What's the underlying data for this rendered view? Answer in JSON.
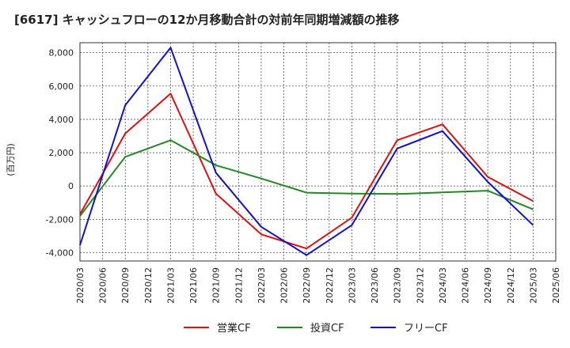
{
  "chart_data": {
    "type": "line",
    "title": "[6617]  キャッシュフローの12か月移動合計の対前年同期増減額の推移",
    "ylabel": "(百万円)",
    "xlabel": "",
    "ylim": [
      -4500,
      8600
    ],
    "yticks": [
      -4000,
      -2000,
      0,
      2000,
      4000,
      6000,
      8000
    ],
    "ytick_labels": [
      "-4,000",
      "-2,000",
      "0",
      "2,000",
      "4,000",
      "6,000",
      "8,000"
    ],
    "x_range": [
      "2020/03",
      "2025/06"
    ],
    "xtick_labels": [
      "2020/03",
      "2020/06",
      "2020/09",
      "2020/12",
      "2021/03",
      "2021/06",
      "2021/09",
      "2021/12",
      "2022/03",
      "2022/06",
      "2022/09",
      "2022/12",
      "2023/03",
      "2023/06",
      "2023/09",
      "2023/12",
      "2024/03",
      "2024/06",
      "2024/09",
      "2024/12",
      "2025/03",
      "2025/06"
    ],
    "grid": true,
    "legend_position": "bottom",
    "series": [
      {
        "name": "営業CF",
        "color": "#dd1111",
        "x": [
          "2020/03",
          "2020/09",
          "2021/03",
          "2021/09",
          "2022/03",
          "2022/09",
          "2023/03",
          "2023/09",
          "2024/03",
          "2024/09",
          "2025/03"
        ],
        "values": [
          -1700,
          3150,
          5550,
          -450,
          -2900,
          -3750,
          -1900,
          2750,
          3700,
          550,
          -900
        ]
      },
      {
        "name": "投資CF",
        "color": "#228822",
        "x": [
          "2020/03",
          "2020/09",
          "2021/03",
          "2021/09",
          "2022/03",
          "2022/09",
          "2023/03",
          "2023/09",
          "2024/03",
          "2024/09",
          "2025/03"
        ],
        "values": [
          -1800,
          1750,
          2750,
          1250,
          450,
          -400,
          -450,
          -480,
          -380,
          -280,
          -1400
        ]
      },
      {
        "name": "フリーCF",
        "color": "#1111cc",
        "x": [
          "2020/03",
          "2020/09",
          "2021/03",
          "2021/09",
          "2022/03",
          "2022/09",
          "2023/03",
          "2023/09",
          "2024/03",
          "2024/09",
          "2025/03"
        ],
        "values": [
          -3550,
          4850,
          8300,
          800,
          -2450,
          -4150,
          -2350,
          2250,
          3300,
          250,
          -2350
        ]
      }
    ]
  }
}
